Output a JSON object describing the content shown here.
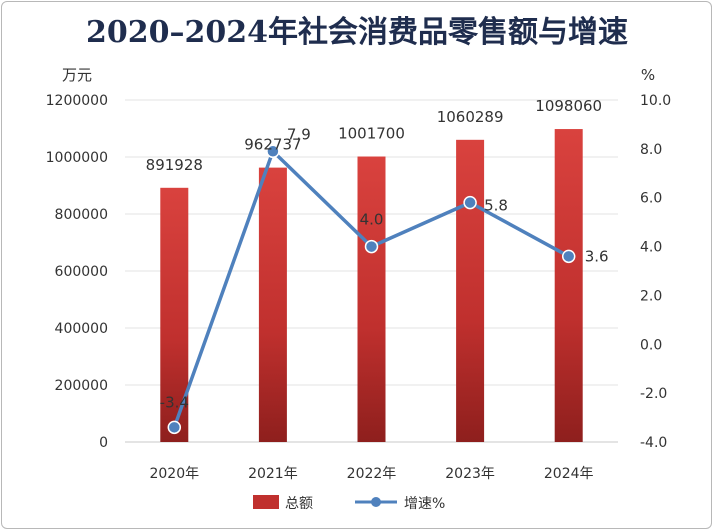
{
  "chart_data": {
    "type": "bar",
    "title": "2020–2024年社会消费品零售额与增速",
    "categories": [
      "2020年",
      "2021年",
      "2022年",
      "2023年",
      "2024年"
    ],
    "left_axis": {
      "unit": "万元",
      "ylim": [
        0,
        1200000
      ],
      "ticks": [
        0,
        200000,
        400000,
        600000,
        800000,
        1000000,
        1200000
      ],
      "tick_labels": [
        "0",
        "200000",
        "400000",
        "600000",
        "800000",
        "1000000",
        "1200000"
      ]
    },
    "right_axis": {
      "unit": "%",
      "ylim": [
        -4.0,
        10.0
      ],
      "ticks": [
        -4.0,
        -2.0,
        0.0,
        2.0,
        4.0,
        6.0,
        8.0,
        10.0
      ],
      "tick_labels": [
        "-4.0",
        "-2.0",
        "0.0",
        "2.0",
        "4.0",
        "6.0",
        "8.0",
        "10.0"
      ]
    },
    "series": [
      {
        "name": "总额",
        "type": "bar",
        "axis": "left",
        "values": [
          891928,
          962737,
          1001700,
          1060289,
          1098060
        ],
        "labels": [
          "891928",
          "962737",
          "1001700",
          "1060289",
          "1098060"
        ],
        "color": "#c0302e"
      },
      {
        "name": "增速%",
        "type": "line",
        "axis": "right",
        "values": [
          -3.4,
          7.9,
          4.0,
          5.8,
          3.6
        ],
        "labels": [
          "-3.4",
          "7.9",
          "4.0",
          "5.8",
          "3.6"
        ],
        "color": "#4f81bd"
      }
    ],
    "grid": true,
    "legend": "bottom"
  }
}
